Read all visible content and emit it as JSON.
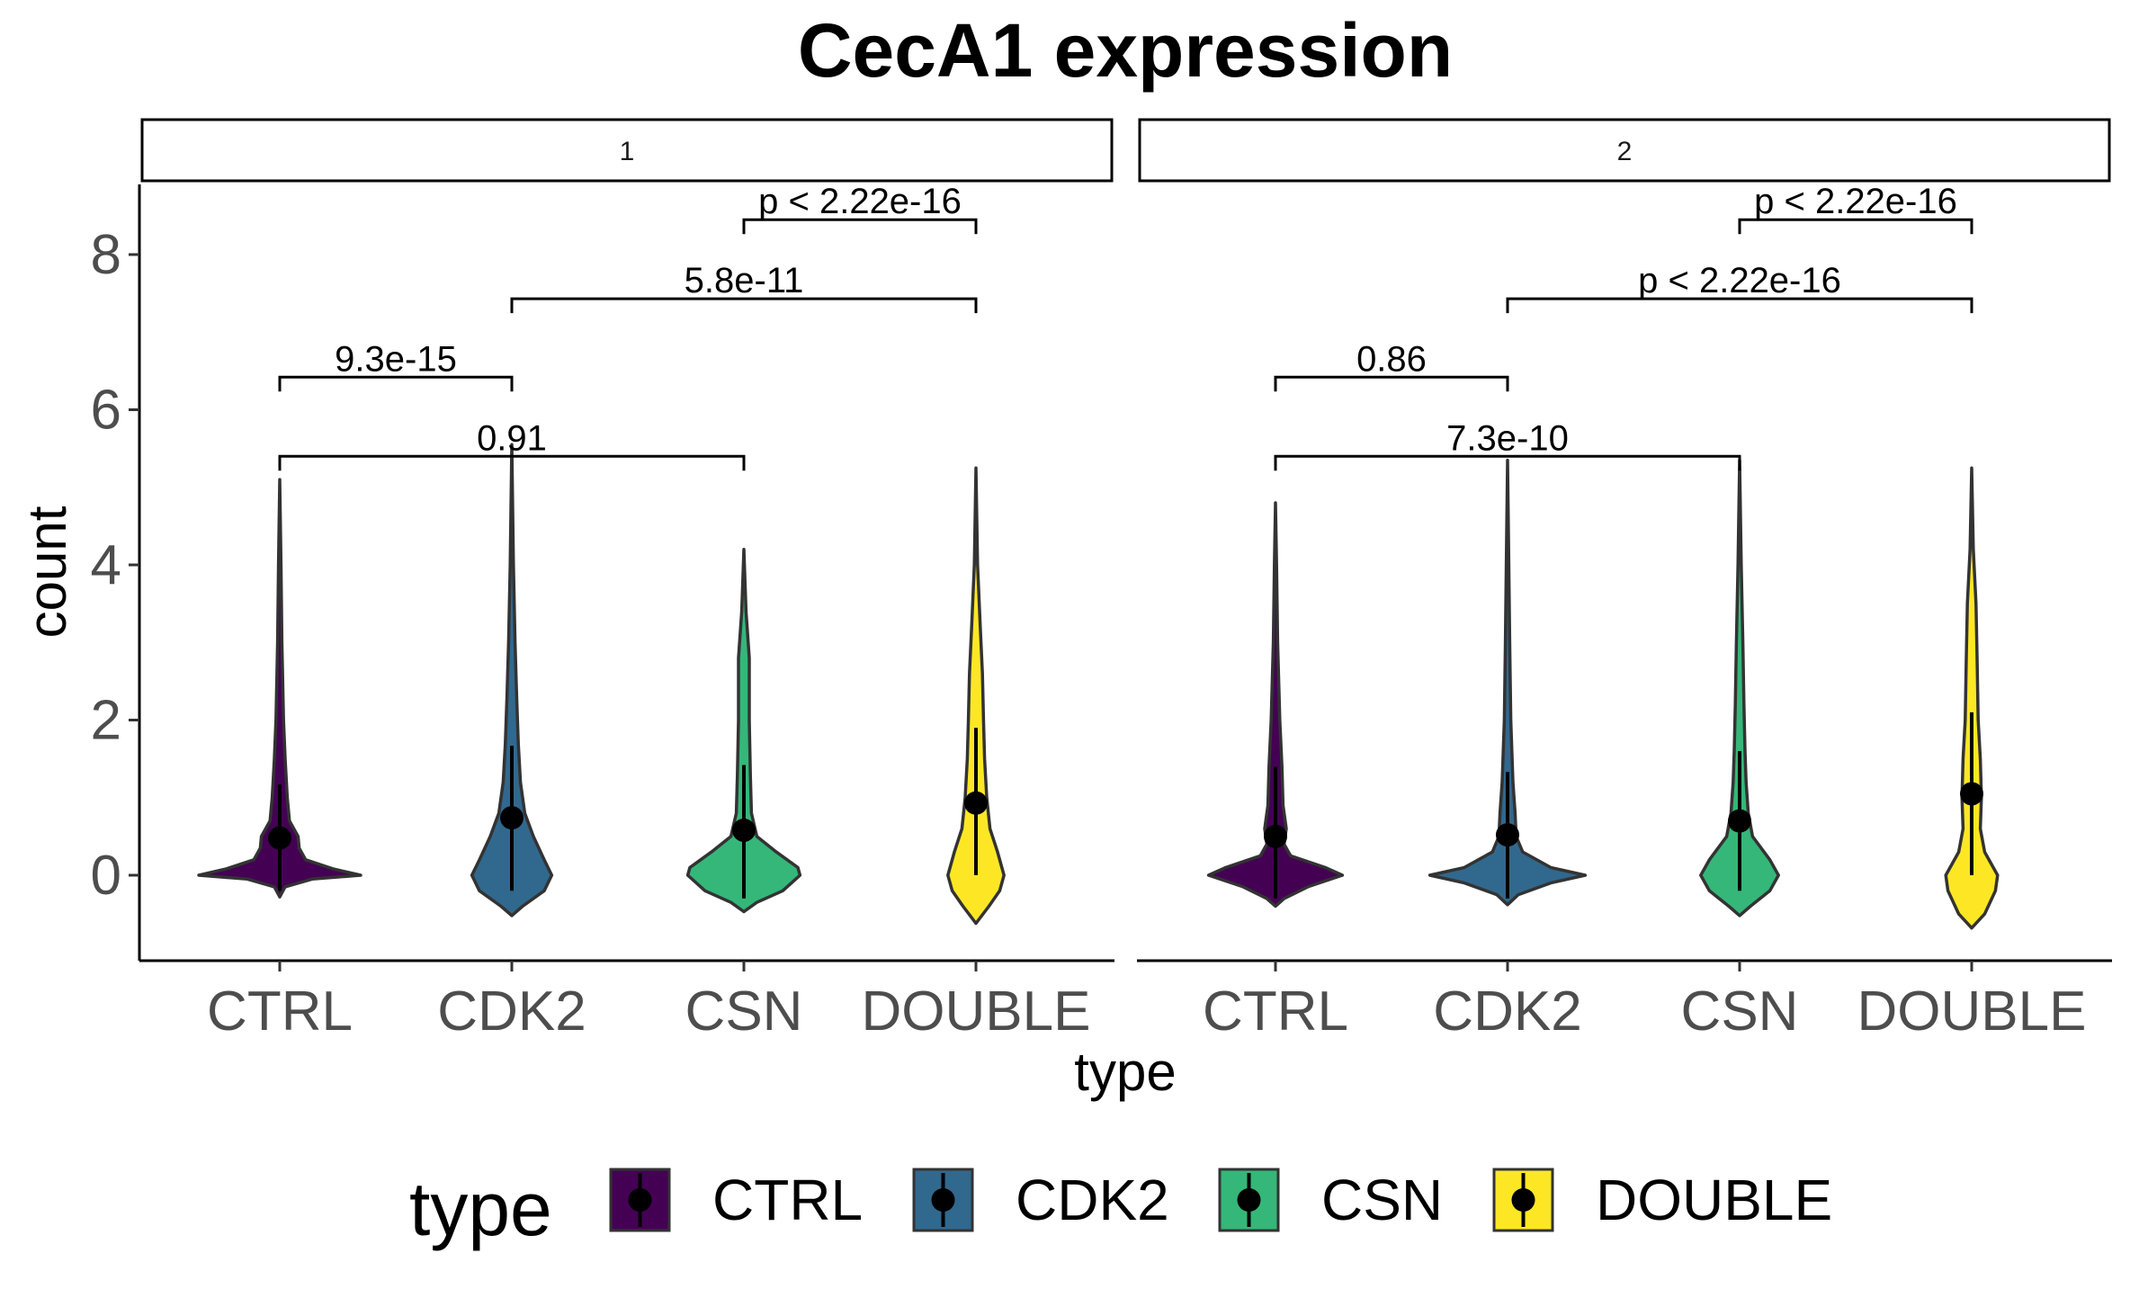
{
  "chart_data": {
    "type": "violin",
    "title": "CecA1 expression",
    "xlabel": "type",
    "ylabel": "count",
    "ylim": [
      -1.1,
      8.9
    ],
    "yticks": [
      0,
      2,
      4,
      6,
      8
    ],
    "categories": [
      "CTRL",
      "CDK2",
      "CSN",
      "DOUBLE"
    ],
    "colors": {
      "CTRL": "#440154",
      "CDK2": "#31688E",
      "CSN": "#35B779",
      "DOUBLE": "#FDE725"
    },
    "legend": {
      "title": "type",
      "position": "bottom",
      "entries": [
        "CTRL",
        "CDK2",
        "CSN",
        "DOUBLE"
      ]
    },
    "grid": false,
    "panels": [
      {
        "label": "1",
        "groups": [
          {
            "type": "CTRL",
            "min": -0.28,
            "max": 5.1,
            "mean": 0.48,
            "sd_low": -0.2,
            "sd_high": 1.17,
            "density": [
              [
                -0.28,
                0
              ],
              [
                -0.15,
                0.05
              ],
              [
                -0.05,
                0.3
              ],
              [
                0,
                0.75
              ],
              [
                0.08,
                0.5
              ],
              [
                0.2,
                0.24
              ],
              [
                0.35,
                0.18
              ],
              [
                0.5,
                0.17
              ],
              [
                0.7,
                0.09
              ],
              [
                1.0,
                0.07
              ],
              [
                1.5,
                0.05
              ],
              [
                2.0,
                0.035
              ],
              [
                3.0,
                0.02
              ],
              [
                4.0,
                0.012
              ],
              [
                5.1,
                0
              ]
            ]
          },
          {
            "type": "CDK2",
            "min": -0.52,
            "max": 5.55,
            "mean": 0.74,
            "sd_low": -0.2,
            "sd_high": 1.67,
            "density": [
              [
                -0.52,
                0
              ],
              [
                -0.4,
                0.1
              ],
              [
                -0.2,
                0.3
              ],
              [
                0,
                0.37
              ],
              [
                0.2,
                0.3
              ],
              [
                0.5,
                0.2
              ],
              [
                0.8,
                0.12
              ],
              [
                1.2,
                0.08
              ],
              [
                1.7,
                0.06
              ],
              [
                2.3,
                0.045
              ],
              [
                3.0,
                0.03
              ],
              [
                4.0,
                0.015
              ],
              [
                5.55,
                0
              ]
            ]
          },
          {
            "type": "CSN",
            "min": -0.47,
            "max": 4.2,
            "mean": 0.58,
            "sd_low": -0.3,
            "sd_high": 1.42,
            "density": [
              [
                -0.47,
                0
              ],
              [
                -0.35,
                0.12
              ],
              [
                -0.2,
                0.36
              ],
              [
                0,
                0.52
              ],
              [
                0.1,
                0.5
              ],
              [
                0.3,
                0.3
              ],
              [
                0.5,
                0.12
              ],
              [
                0.8,
                0.07
              ],
              [
                1.3,
                0.06
              ],
              [
                2.0,
                0.05
              ],
              [
                2.8,
                0.05
              ],
              [
                3.4,
                0.02
              ],
              [
                4.2,
                0
              ]
            ]
          },
          {
            "type": "DOUBLE",
            "min": -0.62,
            "max": 5.25,
            "mean": 0.93,
            "sd_low": 0,
            "sd_high": 1.9,
            "density": [
              [
                -0.62,
                0
              ],
              [
                -0.4,
                0.12
              ],
              [
                -0.2,
                0.22
              ],
              [
                0,
                0.26
              ],
              [
                0.3,
                0.2
              ],
              [
                0.6,
                0.13
              ],
              [
                1.0,
                0.1
              ],
              [
                1.5,
                0.08
              ],
              [
                2.0,
                0.07
              ],
              [
                2.6,
                0.06
              ],
              [
                3.2,
                0.04
              ],
              [
                4.0,
                0.015
              ],
              [
                5.25,
                0
              ]
            ]
          }
        ],
        "comparisons": [
          {
            "from": "CSN",
            "to": "DOUBLE",
            "y": 8.45,
            "label": "p < 2.22e-16"
          },
          {
            "from": "CDK2",
            "to": "DOUBLE",
            "y": 7.43,
            "label": "5.8e-11"
          },
          {
            "from": "CTRL",
            "to": "CDK2",
            "y": 6.42,
            "label": "9.3e-15"
          },
          {
            "from": "CTRL",
            "to": "CSN",
            "y": 5.4,
            "label": "0.91"
          }
        ]
      },
      {
        "label": "2",
        "groups": [
          {
            "type": "CTRL",
            "min": -0.4,
            "max": 4.8,
            "mean": 0.5,
            "sd_low": -0.3,
            "sd_high": 1.4,
            "density": [
              [
                -0.4,
                0
              ],
              [
                -0.3,
                0.08
              ],
              [
                -0.15,
                0.3
              ],
              [
                0,
                0.62
              ],
              [
                0.1,
                0.46
              ],
              [
                0.25,
                0.14
              ],
              [
                0.4,
                0.08
              ],
              [
                0.6,
                0.1
              ],
              [
                0.9,
                0.07
              ],
              [
                1.4,
                0.06
              ],
              [
                2.0,
                0.04
              ],
              [
                3.0,
                0.02
              ],
              [
                4.0,
                0.01
              ],
              [
                4.8,
                0
              ]
            ]
          },
          {
            "type": "CDK2",
            "min": -0.38,
            "max": 5.35,
            "mean": 0.52,
            "sd_low": -0.3,
            "sd_high": 1.33,
            "density": [
              [
                -0.38,
                0
              ],
              [
                -0.25,
                0.1
              ],
              [
                -0.1,
                0.4
              ],
              [
                0,
                0.72
              ],
              [
                0.1,
                0.4
              ],
              [
                0.3,
                0.14
              ],
              [
                0.5,
                0.08
              ],
              [
                0.8,
                0.07
              ],
              [
                1.2,
                0.05
              ],
              [
                2.0,
                0.03
              ],
              [
                3.0,
                0.02
              ],
              [
                4.0,
                0.012
              ],
              [
                5.35,
                0
              ]
            ]
          },
          {
            "type": "CSN",
            "min": -0.52,
            "max": 5.35,
            "mean": 0.7,
            "sd_low": -0.2,
            "sd_high": 1.6,
            "density": [
              [
                -0.52,
                0
              ],
              [
                -0.4,
                0.1
              ],
              [
                -0.2,
                0.28
              ],
              [
                0,
                0.36
              ],
              [
                0.2,
                0.28
              ],
              [
                0.5,
                0.12
              ],
              [
                0.8,
                0.08
              ],
              [
                1.2,
                0.06
              ],
              [
                1.6,
                0.05
              ],
              [
                2.2,
                0.04
              ],
              [
                3.0,
                0.03
              ],
              [
                4.0,
                0.015
              ],
              [
                5.35,
                0
              ]
            ]
          },
          {
            "type": "DOUBLE",
            "min": -0.68,
            "max": 5.25,
            "mean": 1.05,
            "sd_low": 0,
            "sd_high": 2.1,
            "density": [
              [
                -0.68,
                0
              ],
              [
                -0.5,
                0.12
              ],
              [
                -0.2,
                0.22
              ],
              [
                0,
                0.24
              ],
              [
                0.3,
                0.12
              ],
              [
                0.6,
                0.08
              ],
              [
                1.0,
                0.09
              ],
              [
                1.5,
                0.08
              ],
              [
                2.0,
                0.06
              ],
              [
                2.8,
                0.05
              ],
              [
                3.5,
                0.04
              ],
              [
                4.2,
                0.015
              ],
              [
                5.25,
                0
              ]
            ]
          }
        ],
        "comparisons": [
          {
            "from": "CSN",
            "to": "DOUBLE",
            "y": 8.45,
            "label": "p < 2.22e-16"
          },
          {
            "from": "CDK2",
            "to": "DOUBLE",
            "y": 7.43,
            "label": "p < 2.22e-16"
          },
          {
            "from": "CTRL",
            "to": "CDK2",
            "y": 6.42,
            "label": "0.86"
          },
          {
            "from": "CTRL",
            "to": "CSN",
            "y": 5.4,
            "label": "7.3e-10"
          }
        ]
      }
    ]
  }
}
